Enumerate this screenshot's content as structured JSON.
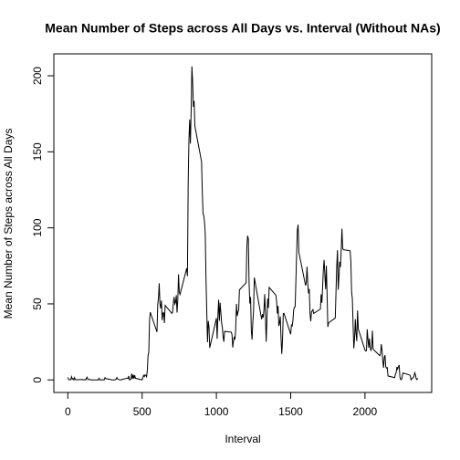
{
  "chart_data": {
    "type": "line",
    "title": "Mean Number of Steps across All Days vs. Interval (Without NAs)",
    "xlabel": "Interval",
    "ylabel": "Mean Number of Steps across All Days",
    "color": "#000000",
    "xlim": [
      -94.2,
      2449.2
    ],
    "xticks": [
      0,
      500,
      1000,
      1500,
      2000
    ],
    "ylim": [
      -8.25,
      214.42
    ],
    "yticks": [
      0,
      50,
      100,
      150,
      200
    ],
    "x": [
      0,
      5,
      10,
      15,
      20,
      25,
      30,
      35,
      40,
      45,
      50,
      55,
      100,
      105,
      110,
      115,
      120,
      125,
      130,
      135,
      140,
      145,
      150,
      155,
      200,
      205,
      210,
      215,
      220,
      225,
      230,
      235,
      240,
      245,
      250,
      255,
      300,
      305,
      310,
      315,
      320,
      325,
      330,
      335,
      340,
      345,
      350,
      355,
      400,
      405,
      410,
      415,
      420,
      425,
      430,
      435,
      440,
      445,
      450,
      455,
      500,
      505,
      510,
      515,
      520,
      525,
      530,
      535,
      540,
      545,
      550,
      555,
      600,
      605,
      610,
      615,
      620,
      625,
      630,
      635,
      640,
      645,
      650,
      655,
      700,
      705,
      710,
      715,
      720,
      725,
      730,
      735,
      740,
      745,
      750,
      755,
      800,
      805,
      810,
      815,
      820,
      825,
      830,
      835,
      840,
      845,
      850,
      855,
      900,
      905,
      910,
      915,
      920,
      925,
      930,
      935,
      940,
      945,
      950,
      955,
      1000,
      1005,
      1010,
      1015,
      1020,
      1025,
      1030,
      1035,
      1040,
      1045,
      1050,
      1055,
      1100,
      1105,
      1110,
      1115,
      1120,
      1125,
      1130,
      1135,
      1140,
      1145,
      1150,
      1155,
      1200,
      1205,
      1210,
      1215,
      1220,
      1225,
      1230,
      1235,
      1240,
      1245,
      1250,
      1255,
      1300,
      1305,
      1310,
      1315,
      1320,
      1325,
      1330,
      1335,
      1340,
      1345,
      1350,
      1355,
      1400,
      1405,
      1410,
      1415,
      1420,
      1425,
      1430,
      1435,
      1440,
      1445,
      1450,
      1455,
      1500,
      1505,
      1510,
      1515,
      1520,
      1525,
      1530,
      1535,
      1540,
      1545,
      1550,
      1555,
      1600,
      1605,
      1610,
      1615,
      1620,
      1625,
      1630,
      1635,
      1640,
      1645,
      1650,
      1655,
      1700,
      1705,
      1710,
      1715,
      1720,
      1725,
      1730,
      1735,
      1740,
      1745,
      1750,
      1755,
      1800,
      1805,
      1810,
      1815,
      1820,
      1825,
      1830,
      1835,
      1840,
      1845,
      1850,
      1855,
      1900,
      1905,
      1910,
      1915,
      1920,
      1925,
      1930,
      1935,
      1940,
      1945,
      1950,
      1955,
      2000,
      2005,
      2010,
      2015,
      2020,
      2025,
      2030,
      2035,
      2040,
      2045,
      2050,
      2055,
      2100,
      2105,
      2110,
      2115,
      2120,
      2125,
      2130,
      2135,
      2140,
      2145,
      2150,
      2155,
      2200,
      2205,
      2210,
      2215,
      2220,
      2225,
      2230,
      2235,
      2240,
      2245,
      2250,
      2255,
      2300,
      2305,
      2310,
      2315,
      2320,
      2325,
      2330,
      2335,
      2340,
      2345,
      2350,
      2355
    ],
    "values": [
      1.7,
      0.3,
      0.1,
      0.2,
      0.1,
      2.1,
      0.5,
      0.9,
      0,
      1.5,
      0.3,
      0.1,
      0.3,
      0,
      0.1,
      0.3,
      0,
      1.1,
      1.8,
      0.2,
      0.2,
      0.4,
      0.3,
      0,
      0,
      0,
      1.1,
      0,
      0,
      0.1,
      0,
      0.2,
      0,
      0,
      1.5,
      0.9,
      0,
      0,
      0,
      0,
      0.2,
      0.6,
      1.6,
      0.6,
      0.5,
      0.1,
      0,
      0,
      1.2,
      0.9,
      2.6,
      0,
      0.3,
      0.4,
      4.1,
      0.7,
      3.5,
      0.8,
      3.1,
      1.1,
      0,
      1.6,
      3,
      2.2,
      3.3,
      3,
      2.1,
      6.1,
      16,
      18.3,
      39.5,
      44.5,
      31.5,
      49.3,
      53.8,
      63.5,
      50,
      47.1,
      52.2,
      39.3,
      44,
      44.2,
      37.4,
      49,
      43.8,
      44.4,
      50.5,
      54.5,
      49.9,
      51,
      55.7,
      44.3,
      52.3,
      69.5,
      57.8,
      56.2,
      73.4,
      68.2,
      129.4,
      157.5,
      171.2,
      155.4,
      177.3,
      206.2,
      195.9,
      179.6,
      183.4,
      167,
      143.5,
      124,
      109.1,
      108.1,
      103.7,
      96,
      66.2,
      45.2,
      24.8,
      38.8,
      35,
      21.1,
      40.6,
      27,
      42.4,
      52.7,
      38.9,
      50.8,
      44.3,
      37.4,
      34.7,
      28.3,
      25.1,
      31.9,
      31.4,
      29.7,
      21.3,
      25.5,
      28.4,
      26.5,
      33.4,
      50,
      42,
      44.6,
      46,
      59.2,
      63.9,
      87.7,
      94.8,
      92.8,
      63.4,
      50.2,
      54.5,
      32.4,
      26.5,
      37.7,
      45.1,
      67.3,
      42.3,
      39.9,
      43.3,
      41,
      46.2,
      56.4,
      42.8,
      25.1,
      40,
      53.5,
      47.3,
      60.8,
      55.8,
      52,
      43.6,
      48.7,
      35.5,
      37.5,
      41.8,
      27.5,
      17.1,
      26.1,
      43.6,
      43.8,
      30,
      36.1,
      35.5,
      38.8,
      46,
      47.8,
      48.1,
      65.3,
      82.9,
      98.7,
      102.1,
      84,
      62.1,
      64.1,
      74.5,
      63.2,
      56.9,
      59.8,
      43.9,
      38.6,
      44.7,
      45.5,
      46.2,
      43.7,
      46.6,
      56.3,
      50.7,
      61.2,
      72.7,
      78.9,
      68.9,
      59.7,
      75.1,
      56.5,
      34.8,
      37.5,
      40.7,
      58,
      74.7,
      85.3,
      59.3,
      67.8,
      77.7,
      74.2,
      85.3,
      99.5,
      86.6,
      85.6,
      84.9,
      77.8,
      58,
      53.4,
      36.3,
      20.7,
      27.4,
      40,
      30.2,
      25.5,
      45.7,
      33.5,
      19.6,
      19,
      19.3,
      33.3,
      26.8,
      21.2,
      27.3,
      21.3,
      19.5,
      21.3,
      32.3,
      20.2,
      15.9,
      17.2,
      23.5,
      19.2,
      12.5,
      8,
      14.7,
      16.3,
      8.7,
      7.8,
      8.1,
      2.6,
      1.5,
      3.7,
      4.8,
      8.5,
      7.1,
      8.7,
      9.8,
      2.2,
      0.3,
      0.1,
      1.6,
      4.6,
      3.3,
      2.8,
      0,
      0.8,
      1,
      1.6,
      2.6,
      4.7,
      3.3,
      0.6,
      0.2,
      1.1
    ]
  }
}
